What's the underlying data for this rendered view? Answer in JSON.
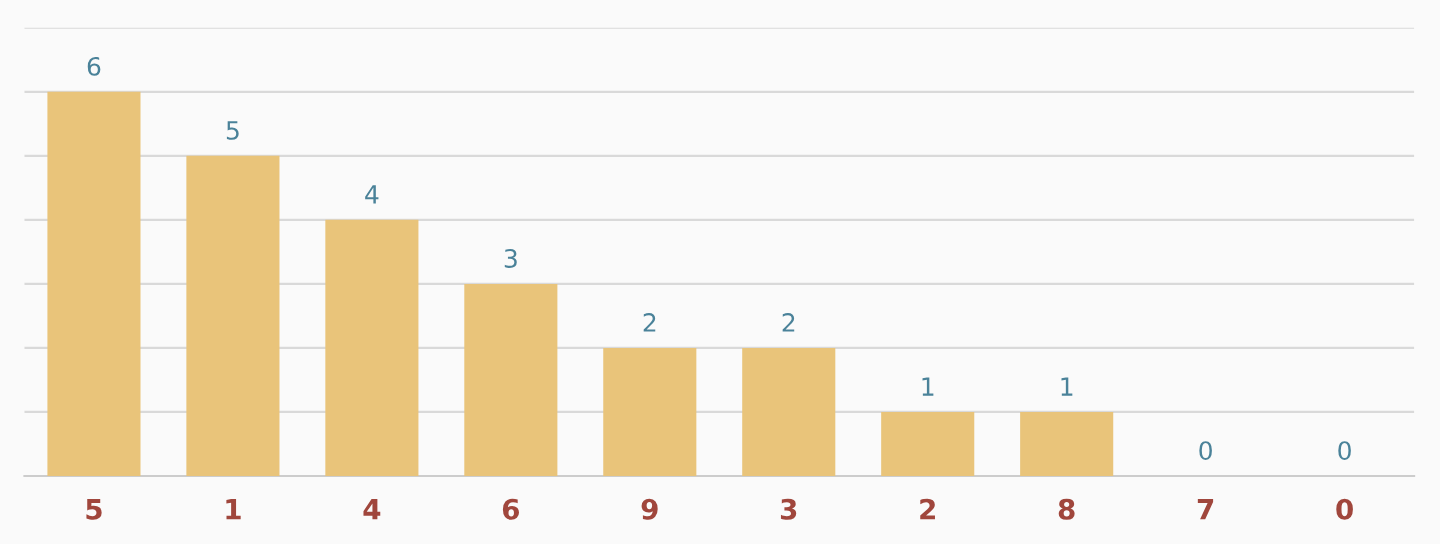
{
  "chart_data": {
    "type": "bar",
    "categories": [
      "5",
      "1",
      "4",
      "6",
      "9",
      "3",
      "2",
      "8",
      "7",
      "0"
    ],
    "values": [
      6,
      5,
      4,
      3,
      2,
      2,
      1,
      1,
      0,
      0
    ],
    "color": "#e9c47a",
    "ylim": [
      0,
      7
    ],
    "yticks": [
      {
        "value": 0,
        "label": null
      },
      {
        "value": 1,
        "label": null
      },
      {
        "value": 2,
        "label": null
      },
      {
        "value": 3,
        "label": null
      },
      {
        "value": 4,
        "label": null
      },
      {
        "value": 5,
        "label": null
      },
      {
        "value": 6,
        "label": null
      },
      {
        "value": 7,
        "label": null
      }
    ],
    "grid": "y",
    "tick_labels": "x",
    "data_labels": true
  }
}
